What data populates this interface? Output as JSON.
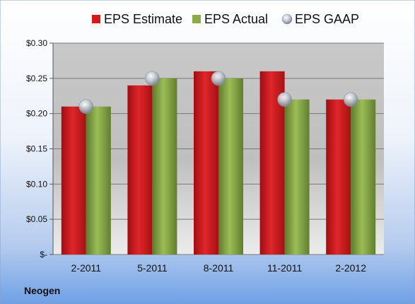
{
  "chart_data": {
    "type": "bar",
    "categories": [
      "2-2011",
      "5-2011",
      "8-2011",
      "11-2011",
      "2-2012"
    ],
    "series": [
      {
        "name": "EPS Estimate",
        "kind": "bar",
        "color": "#d7191c",
        "values": [
          0.21,
          0.24,
          0.26,
          0.26,
          0.22
        ]
      },
      {
        "name": "EPS Actual",
        "kind": "bar",
        "color": "#8bab4a",
        "values": [
          0.21,
          0.25,
          0.25,
          0.22,
          0.22
        ]
      },
      {
        "name": "EPS GAAP",
        "kind": "marker",
        "color": "#b8c2cc",
        "values": [
          0.21,
          0.25,
          0.25,
          0.22,
          0.22
        ]
      }
    ],
    "y_ticks": [
      0,
      0.05,
      0.1,
      0.15,
      0.2,
      0.25,
      0.3
    ],
    "y_tick_labels": [
      "$-",
      "$0.05",
      "$0.10",
      "$0.15",
      "$0.20",
      "$0.25",
      "$0.30"
    ],
    "ylim": [
      0,
      0.3
    ],
    "grid": true,
    "legend_position": "top",
    "footer": "Neogen"
  }
}
